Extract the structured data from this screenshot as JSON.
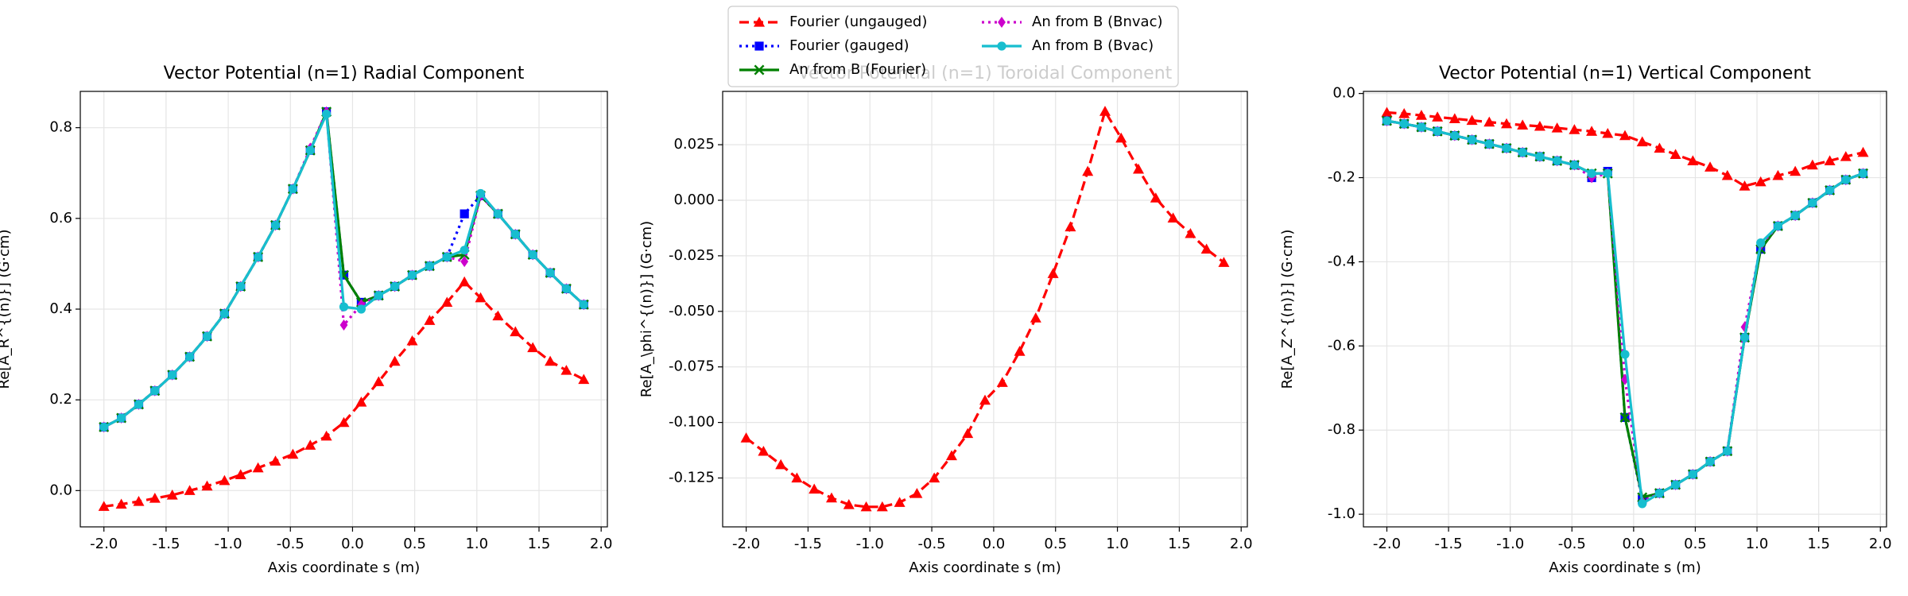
{
  "chart_data": [
    {
      "type": "line",
      "title": "Vector Potential (n=1) Radial Component",
      "xlabel": "Axis coordinate s (m)",
      "ylabel": "Re[A_R^{(n)}] (G·cm)",
      "x": [
        -2.0,
        -1.86,
        -1.72,
        -1.59,
        -1.45,
        -1.31,
        -1.17,
        -1.03,
        -0.9,
        -0.76,
        -0.62,
        -0.48,
        -0.34,
        -0.21,
        -0.07,
        0.07,
        0.21,
        0.34,
        0.48,
        0.62,
        0.76,
        0.9,
        1.03,
        1.17,
        1.31,
        1.45,
        1.59,
        1.72,
        1.86
      ],
      "xlim": [
        -2.19,
        2.05
      ],
      "ylim": [
        -0.08,
        0.88
      ],
      "grid": true,
      "xticks": [
        {
          "value": -2.0,
          "label": "-2.0"
        },
        -1.5,
        {
          "value": -1.0,
          "label": "-1.0"
        },
        -0.5,
        {
          "value": 0,
          "label": "0.0"
        },
        0.5,
        {
          "value": 1.0,
          "label": "1.0"
        },
        1.5,
        {
          "value": 2.0,
          "label": "2.0"
        }
      ],
      "yticks": [
        {
          "value": 0,
          "label": "0.0"
        },
        0.2,
        0.4,
        0.6,
        0.8
      ],
      "series": [
        {
          "name": "Fourier (ungauged)",
          "color": "#ff0000",
          "marker": "^",
          "dash": "dashed",
          "values": [
            -0.035,
            -0.03,
            -0.024,
            -0.017,
            -0.01,
            0.0,
            0.01,
            0.022,
            0.035,
            0.05,
            0.065,
            0.08,
            0.1,
            0.12,
            0.15,
            0.195,
            0.24,
            0.285,
            0.33,
            0.375,
            0.415,
            0.46,
            0.425,
            0.385,
            0.35,
            0.315,
            0.285,
            0.265,
            0.245
          ]
        },
        {
          "name": "Fourier (gauged)",
          "color": "#0000ff",
          "marker": "s",
          "dash": "dashdot",
          "values": [
            0.14,
            0.16,
            0.19,
            0.22,
            0.255,
            0.295,
            0.34,
            0.39,
            0.45,
            0.515,
            0.585,
            0.665,
            0.75,
            0.835,
            0.475,
            0.415,
            0.43,
            0.45,
            0.475,
            0.495,
            0.515,
            0.61,
            0.65,
            0.61,
            0.565,
            0.52,
            0.48,
            0.445,
            0.41
          ]
        },
        {
          "name": "An from B (Fourier)",
          "color": "#008000",
          "marker": "x",
          "dash": "solid",
          "values": [
            0.14,
            0.16,
            0.19,
            0.22,
            0.255,
            0.295,
            0.34,
            0.39,
            0.45,
            0.515,
            0.585,
            0.665,
            0.75,
            0.835,
            0.475,
            0.415,
            0.43,
            0.45,
            0.475,
            0.495,
            0.515,
            0.52,
            0.65,
            0.61,
            0.565,
            0.52,
            0.48,
            0.445,
            0.41
          ]
        },
        {
          "name": "An from B (Bnvac)",
          "color": "#cc00cc",
          "marker": "D",
          "dash": "dotted",
          "values": [
            0.14,
            0.16,
            0.19,
            0.22,
            0.255,
            0.295,
            0.34,
            0.39,
            0.45,
            0.515,
            0.585,
            0.665,
            0.755,
            0.835,
            0.365,
            0.41,
            0.43,
            0.45,
            0.475,
            0.495,
            0.515,
            0.505,
            0.65,
            0.61,
            0.565,
            0.52,
            0.48,
            0.445,
            0.41
          ]
        },
        {
          "name": "An from B (Bvac)",
          "color": "#17becf",
          "marker": "o",
          "dash": "solid",
          "values": [
            0.14,
            0.16,
            0.19,
            0.22,
            0.255,
            0.295,
            0.34,
            0.39,
            0.45,
            0.515,
            0.585,
            0.665,
            0.75,
            0.83,
            0.405,
            0.4,
            0.43,
            0.45,
            0.475,
            0.495,
            0.515,
            0.53,
            0.655,
            0.61,
            0.565,
            0.52,
            0.48,
            0.445,
            0.41
          ]
        }
      ]
    },
    {
      "type": "line",
      "title": "Vector Potential (n=1) Toroidal Component",
      "xlabel": "Axis coordinate s (m)",
      "ylabel": "Re[A_\\phi^{(n)}] (G·cm)",
      "x": [
        -2.0,
        -1.86,
        -1.72,
        -1.59,
        -1.45,
        -1.31,
        -1.17,
        -1.03,
        -0.9,
        -0.76,
        -0.62,
        -0.48,
        -0.34,
        -0.21,
        -0.07,
        0.07,
        0.21,
        0.34,
        0.48,
        0.62,
        0.76,
        0.9,
        1.03,
        1.17,
        1.31,
        1.45,
        1.59,
        1.72,
        1.86
      ],
      "xlim": [
        -2.19,
        2.05
      ],
      "ylim": [
        -0.147,
        0.049
      ],
      "grid": true,
      "xticks": [
        {
          "value": -2.0,
          "label": "-2.0"
        },
        -1.5,
        {
          "value": -1.0,
          "label": "-1.0"
        },
        -0.5,
        {
          "value": 0,
          "label": "0.0"
        },
        0.5,
        {
          "value": 1.0,
          "label": "1.0"
        },
        1.5,
        {
          "value": 2.0,
          "label": "2.0"
        }
      ],
      "yticks": [
        -0.125,
        {
          "value": -0.1,
          "label": "-0.100"
        },
        -0.075,
        {
          "value": -0.05,
          "label": "-0.050"
        },
        -0.025,
        {
          "value": 0,
          "label": "0.000"
        },
        0.025
      ],
      "series": [
        {
          "color": "#ff0000",
          "marker": "^",
          "dash": "dashed",
          "values": [
            -0.107,
            -0.113,
            -0.119,
            -0.125,
            -0.13,
            -0.134,
            -0.137,
            -0.138,
            -0.138,
            -0.136,
            -0.132,
            -0.125,
            -0.115,
            -0.105,
            -0.09,
            -0.082,
            -0.068,
            -0.053,
            -0.033,
            -0.012,
            0.013,
            0.04,
            0.028,
            0.014,
            0.001,
            -0.008,
            -0.015,
            -0.022,
            -0.028
          ]
        }
      ]
    },
    {
      "type": "line",
      "title": "Vector Potential (n=1) Vertical Component",
      "xlabel": "Axis coordinate s (m)",
      "ylabel": "Re[A_Z^{(n)}] (G·cm)",
      "x": [
        -2.0,
        -1.86,
        -1.72,
        -1.59,
        -1.45,
        -1.31,
        -1.17,
        -1.03,
        -0.9,
        -0.76,
        -0.62,
        -0.48,
        -0.34,
        -0.21,
        -0.07,
        0.07,
        0.21,
        0.34,
        0.48,
        0.62,
        0.76,
        0.9,
        1.03,
        1.17,
        1.31,
        1.45,
        1.59,
        1.72,
        1.86
      ],
      "xlim": [
        -2.19,
        2.05
      ],
      "ylim": [
        -1.03,
        0.005
      ],
      "grid": true,
      "xticks": [
        {
          "value": -2.0,
          "label": "-2.0"
        },
        -1.5,
        {
          "value": -1.0,
          "label": "-1.0"
        },
        -0.5,
        {
          "value": 0,
          "label": "0.0"
        },
        0.5,
        {
          "value": 1.0,
          "label": "1.0"
        },
        1.5,
        {
          "value": 2.0,
          "label": "2.0"
        }
      ],
      "yticks": [
        {
          "value": -1.0,
          "label": "-1.0"
        },
        -0.8,
        -0.6,
        -0.4,
        -0.2,
        {
          "value": 0,
          "label": "0.0"
        }
      ],
      "series": [
        {
          "color": "#ff0000",
          "marker": "^",
          "dash": "dashed",
          "values": [
            -0.045,
            -0.048,
            -0.052,
            -0.056,
            -0.06,
            -0.064,
            -0.068,
            -0.072,
            -0.075,
            -0.078,
            -0.082,
            -0.086,
            -0.09,
            -0.095,
            -0.1,
            -0.115,
            -0.13,
            -0.145,
            -0.16,
            -0.175,
            -0.195,
            -0.22,
            -0.21,
            -0.195,
            -0.185,
            -0.17,
            -0.16,
            -0.15,
            -0.14
          ]
        },
        {
          "color": "#0000ff",
          "marker": "s",
          "dash": "dashdot",
          "values": [
            -0.065,
            -0.072,
            -0.08,
            -0.09,
            -0.1,
            -0.11,
            -0.12,
            -0.13,
            -0.14,
            -0.15,
            -0.16,
            -0.17,
            -0.2,
            -0.185,
            -0.77,
            -0.965,
            -0.95,
            -0.93,
            -0.905,
            -0.875,
            -0.85,
            -0.58,
            -0.37,
            -0.315,
            -0.29,
            -0.26,
            -0.23,
            -0.205,
            -0.19
          ]
        },
        {
          "color": "#008000",
          "marker": "x",
          "dash": "solid",
          "values": [
            -0.065,
            -0.072,
            -0.08,
            -0.09,
            -0.1,
            -0.11,
            -0.12,
            -0.13,
            -0.14,
            -0.15,
            -0.16,
            -0.17,
            -0.19,
            -0.19,
            -0.77,
            -0.96,
            -0.95,
            -0.93,
            -0.905,
            -0.875,
            -0.85,
            -0.58,
            -0.37,
            -0.315,
            -0.29,
            -0.26,
            -0.23,
            -0.205,
            -0.19
          ]
        },
        {
          "color": "#cc00cc",
          "marker": "D",
          "dash": "dotted",
          "values": [
            -0.065,
            -0.072,
            -0.08,
            -0.09,
            -0.1,
            -0.11,
            -0.12,
            -0.13,
            -0.14,
            -0.15,
            -0.16,
            -0.17,
            -0.2,
            -0.19,
            -0.68,
            -0.97,
            -0.95,
            -0.93,
            -0.905,
            -0.875,
            -0.85,
            -0.555,
            -0.36,
            -0.315,
            -0.29,
            -0.26,
            -0.23,
            -0.205,
            -0.19
          ]
        },
        {
          "color": "#17becf",
          "marker": "o",
          "dash": "solid",
          "values": [
            -0.065,
            -0.072,
            -0.08,
            -0.09,
            -0.1,
            -0.11,
            -0.12,
            -0.13,
            -0.14,
            -0.15,
            -0.16,
            -0.17,
            -0.19,
            -0.19,
            -0.62,
            -0.975,
            -0.95,
            -0.93,
            -0.905,
            -0.875,
            -0.85,
            -0.58,
            -0.355,
            -0.315,
            -0.29,
            -0.26,
            -0.23,
            -0.205,
            -0.19
          ]
        }
      ]
    }
  ]
}
